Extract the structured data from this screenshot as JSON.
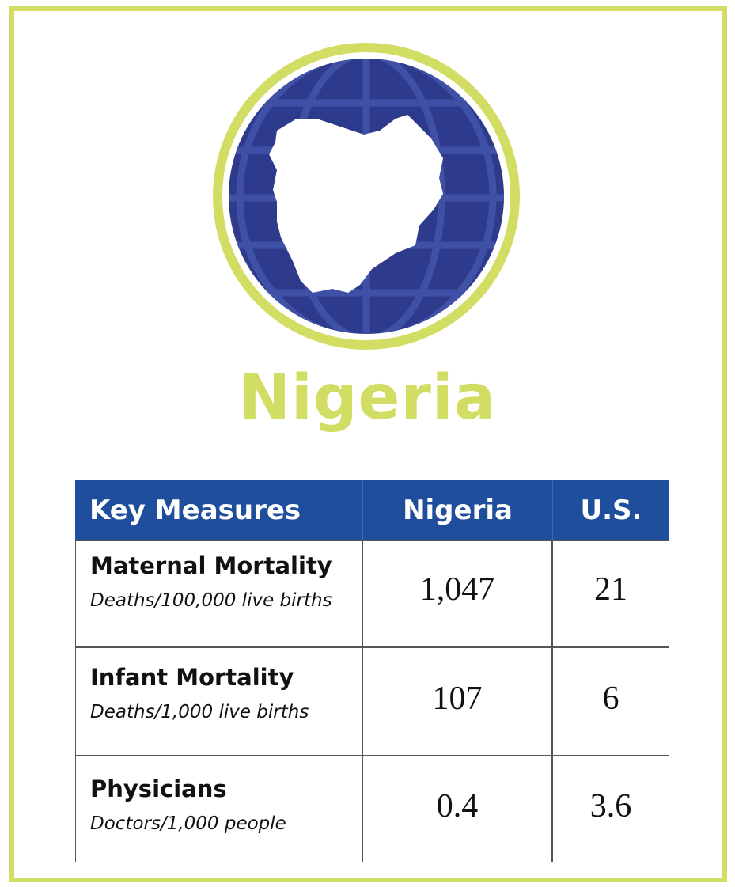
{
  "title": "Nigeria",
  "table": {
    "header": [
      "Key Measures",
      "Nigeria",
      "U.S."
    ],
    "rows": [
      {
        "measure": "Maternal Mortality",
        "unit": "Deaths/100,000 live births",
        "nigeria": "1,047",
        "us": "21"
      },
      {
        "measure": "Infant Mortality",
        "unit": "Deaths/1,000 live births",
        "nigeria": "107",
        "us": "6"
      },
      {
        "measure": "Physicians",
        "unit": "Doctors/1,000 people",
        "nigeria": "0.4",
        "us": "3.6"
      }
    ]
  }
}
